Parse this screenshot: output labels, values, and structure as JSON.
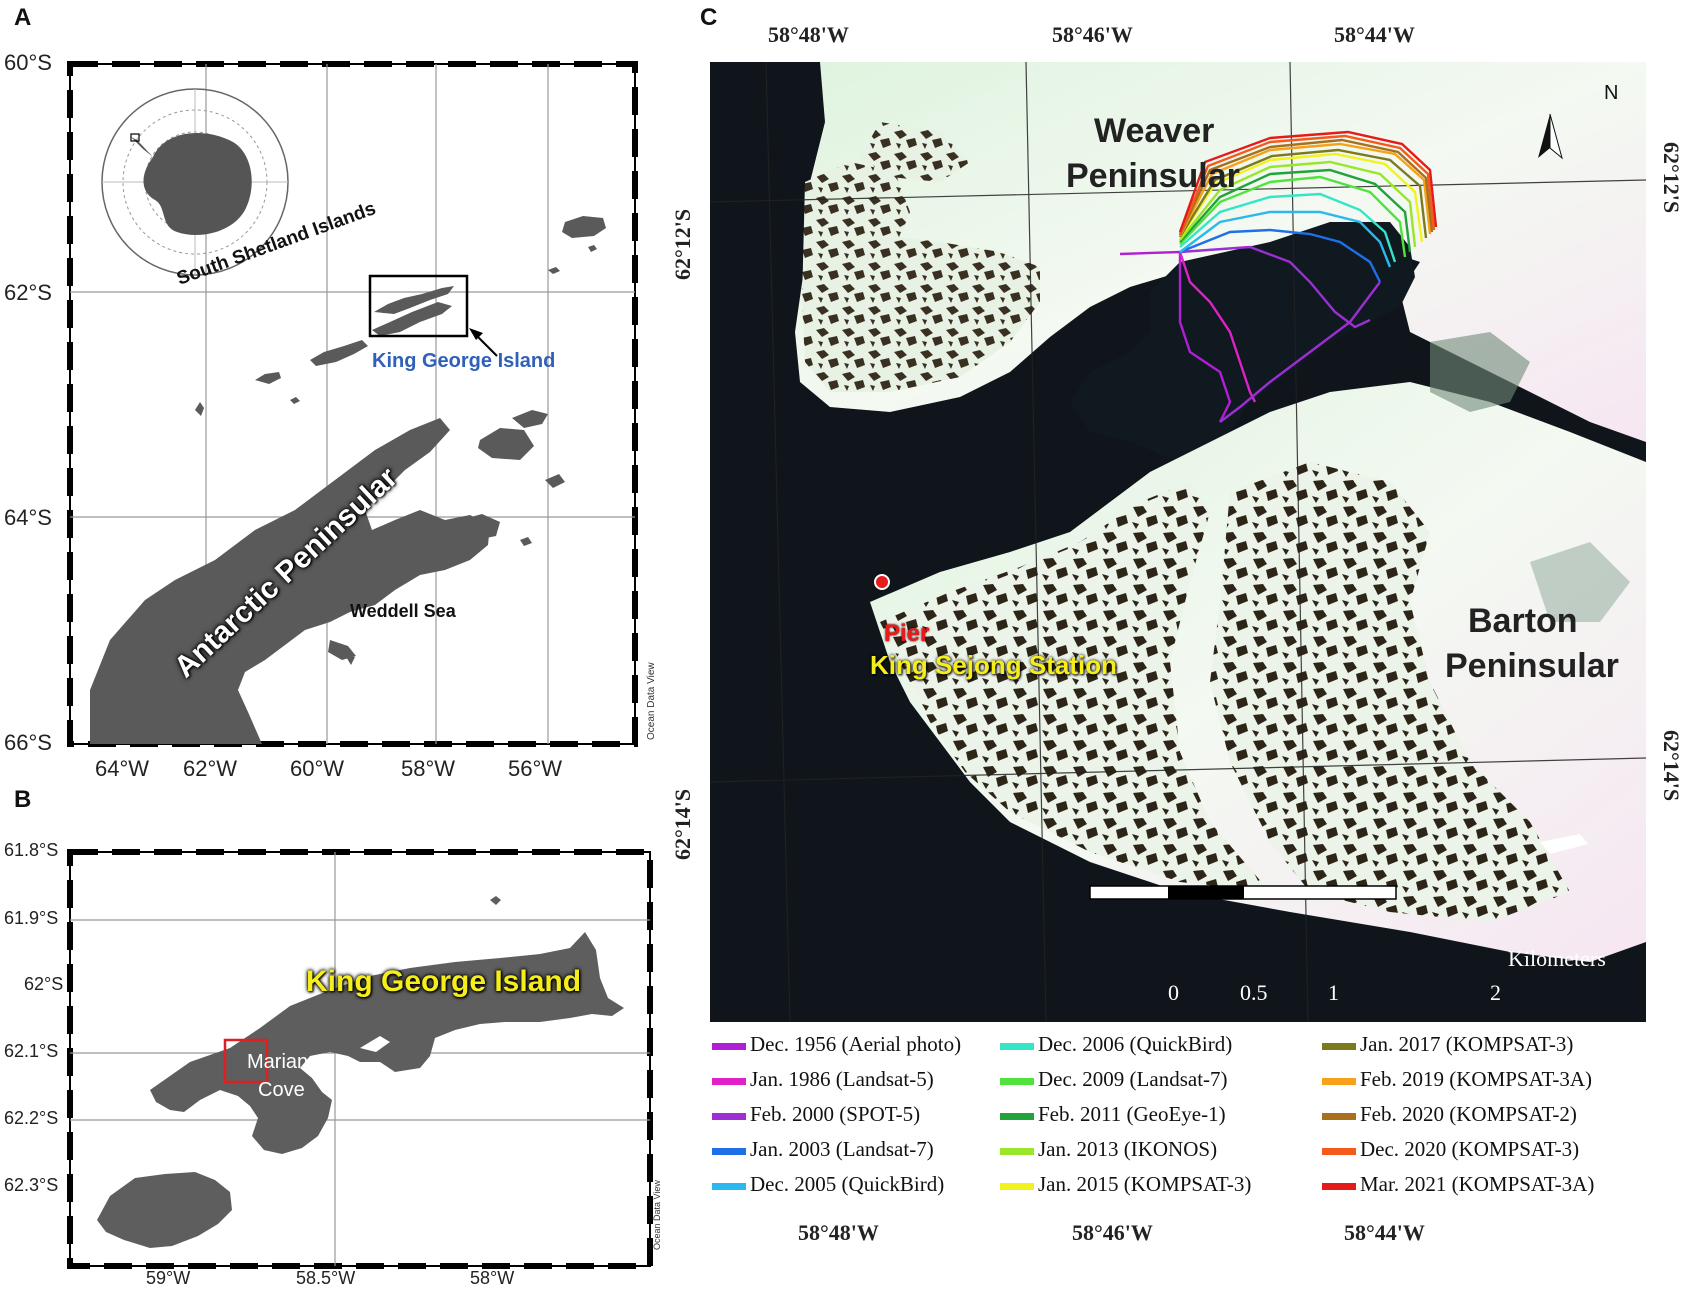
{
  "panels": {
    "a": {
      "letter": "A",
      "lat_ticks": [
        "60°S",
        "62°S",
        "64°S",
        "66°S"
      ],
      "lon_ticks": [
        "64°W",
        "62°W",
        "60°W",
        "58°W",
        "56°W"
      ],
      "labels": {
        "south_shetland": "South Shetland Islands",
        "king_george": "King George Island",
        "antarctic_peninsular": "Antarctic Peninsular",
        "weddell_sea": "Weddell Sea",
        "credit": "Ocean Data View"
      }
    },
    "b": {
      "letter": "B",
      "lat_ticks": [
        "61.8°S",
        "61.9°S",
        "62°S",
        "62.1°S",
        "62.2°S",
        "62.3°S"
      ],
      "lon_ticks": [
        "59°W",
        "58.5°W",
        "58°W"
      ],
      "labels": {
        "king_george": "King George Island",
        "marian_1": "Marian",
        "marian_2": "Cove",
        "credit": "Ocean Data View"
      }
    },
    "c": {
      "letter": "C",
      "top_lon_ticks": [
        "58°48'W",
        "58°46'W",
        "58°44'W"
      ],
      "bottom_lon_ticks": [
        "58°48'W",
        "58°46'W",
        "58°44'W"
      ],
      "lat_ticks_left": [
        "62°12'S",
        "62°14'S"
      ],
      "lat_ticks_right": [
        "62°12'S",
        "62°14'S"
      ],
      "labels": {
        "weaver_1": "Weaver",
        "weaver_2": "Peninsular",
        "barton_1": "Barton",
        "barton_2": "Peninsular",
        "pier": "Pier",
        "station": "King Sejong Station",
        "north": "N"
      },
      "scalebar": {
        "unit": "Kilometers",
        "ticks": [
          "0",
          "0.5",
          "1",
          "2"
        ]
      },
      "legend": [
        {
          "label": "Dec. 1956 (Aerial photo)",
          "color": "#b01fd6"
        },
        {
          "label": "Jan. 1986 (Landsat-5)",
          "color": "#e020c8"
        },
        {
          "label": "Feb. 2000 (SPOT-5)",
          "color": "#9b2fd4"
        },
        {
          "label": "Jan. 2003 (Landsat-7)",
          "color": "#1f6fe8"
        },
        {
          "label": "Dec. 2005 (QuickBird)",
          "color": "#2ab8ee"
        },
        {
          "label": "Dec. 2006 (QuickBird)",
          "color": "#35e6c6"
        },
        {
          "label": "Dec. 2009 (Landsat-7)",
          "color": "#4fe33c"
        },
        {
          "label": "Feb. 2011 (GeoEye-1)",
          "color": "#22a23a"
        },
        {
          "label": "Jan. 2013 (IKONOS)",
          "color": "#9ae62a"
        },
        {
          "label": "Jan. 2015 (KOMPSAT-3)",
          "color": "#f2f21e"
        },
        {
          "label": "Jan. 2017 (KOMPSAT-3)",
          "color": "#7b7a1e"
        },
        {
          "label": "Feb. 2019 (KOMPSAT-3A)",
          "color": "#f5a21a"
        },
        {
          "label": "Feb. 2020 (KOMPSAT-2)",
          "color": "#a8701c"
        },
        {
          "label": "Dec. 2020 (KOMPSAT-3)",
          "color": "#f45a1c"
        },
        {
          "label": "Mar. 2021 (KOMPSAT-3A)",
          "color": "#e41b1b"
        }
      ]
    }
  }
}
